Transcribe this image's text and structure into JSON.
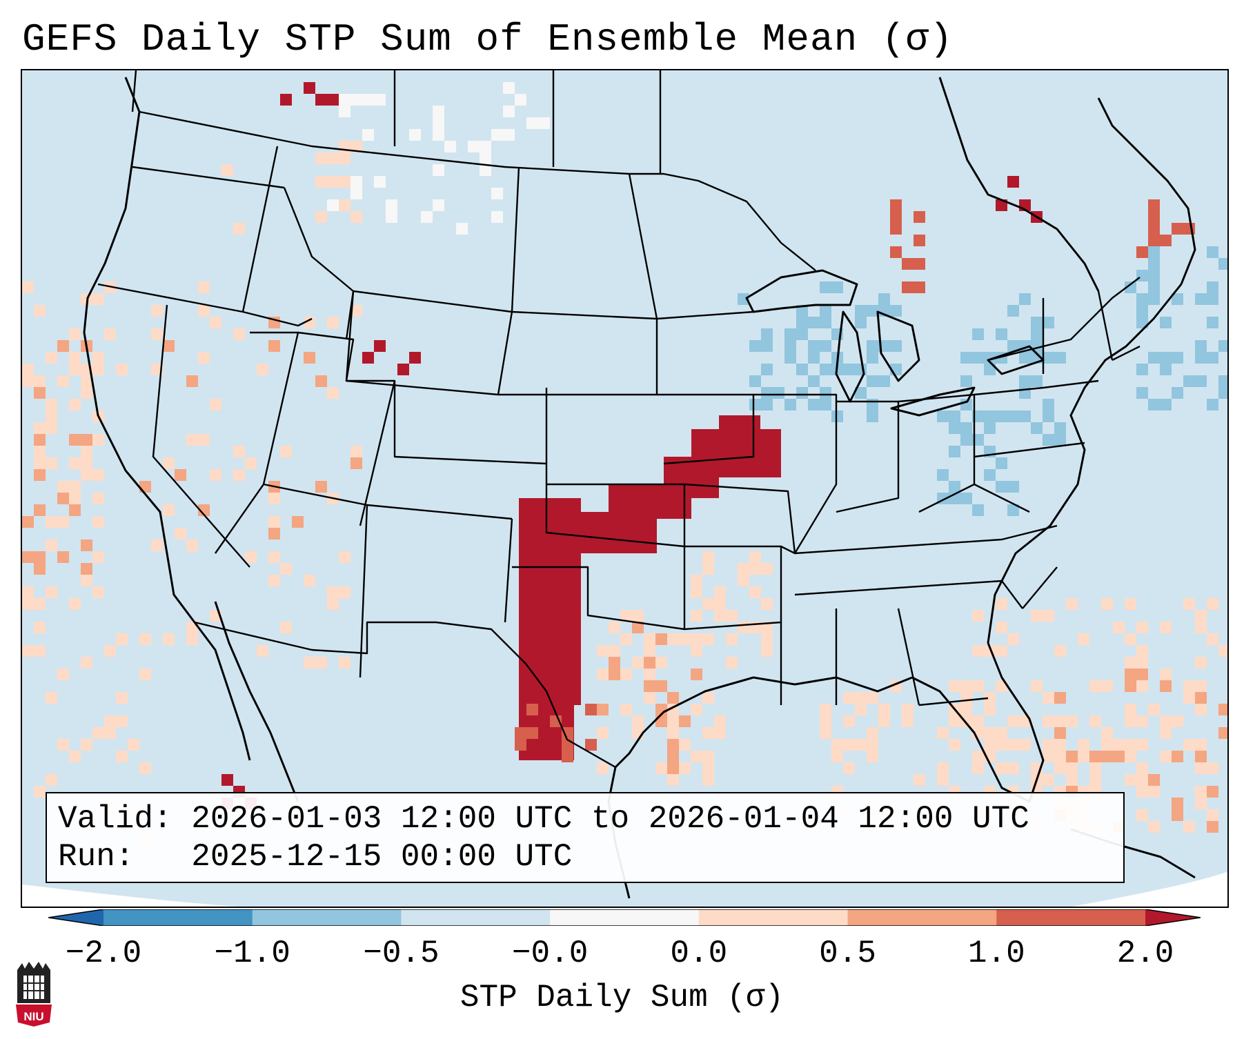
{
  "title": "GEFS Daily STP Sum of Ensemble Mean (σ)",
  "info": {
    "valid_label": "Valid:",
    "valid_value": "2026-01-03 12:00 UTC to 2026-01-04 12:00 UTC",
    "run_label": "Run:",
    "run_value": "2025-12-15 00:00 UTC"
  },
  "colorbar": {
    "label": "STP Daily Sum (σ)",
    "ticks": [
      "−2.0",
      "−1.0",
      "−0.5",
      "−0.0",
      "0.0",
      "0.5",
      "1.0",
      "2.0"
    ],
    "colors": [
      "#4393c3",
      "#92c5de",
      "#d1e5f0",
      "#f7f7f7",
      "#fddbc7",
      "#f4a582",
      "#d6604d"
    ],
    "under_color": "#2166ac",
    "over_color": "#b2182b"
  },
  "map": {
    "region": "Continental United States",
    "ocean_color": "#d1e5f0",
    "high_anomaly_region": "Southern Plains (Texas / Oklahoma / Kansas / Missouri)"
  },
  "logo": {
    "text": "NIU"
  }
}
